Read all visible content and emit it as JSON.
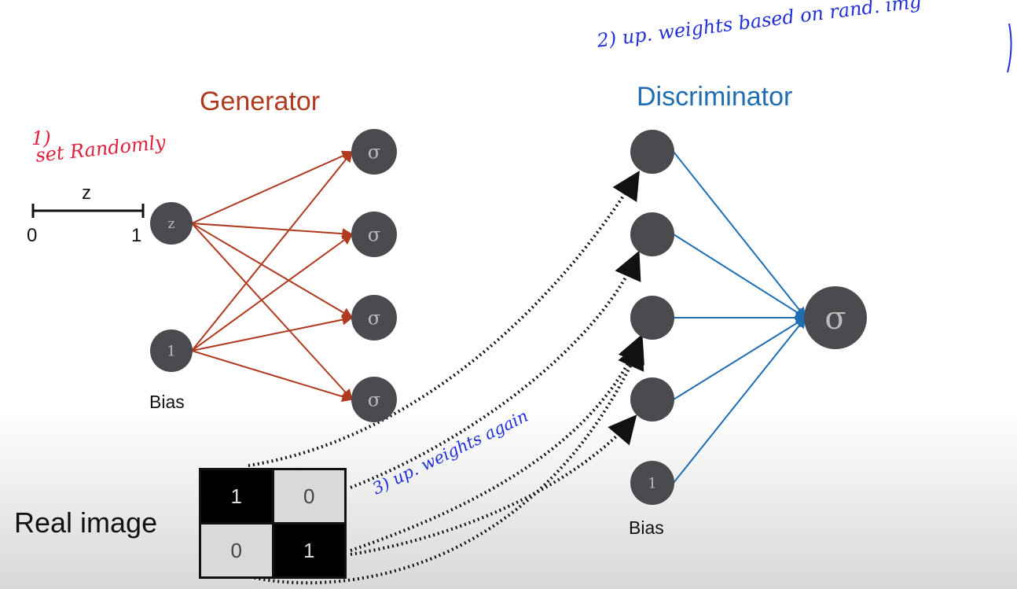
{
  "generator": {
    "title": "Generator",
    "input_node": "z",
    "bias_node": "1",
    "bias_label": "Bias",
    "output_symbol": "σ",
    "color": "#b03a1f"
  },
  "z_axis": {
    "label": "z",
    "min": "0",
    "max": "1"
  },
  "discriminator": {
    "title": "Discriminator",
    "bias_node": "1",
    "bias_label": "Bias",
    "output_symbol": "σ",
    "color": "#1f6eb3"
  },
  "real_image": {
    "label": "Real image",
    "pixels": [
      [
        "1",
        "0"
      ],
      [
        "0",
        "1"
      ]
    ]
  },
  "annotations": {
    "step1_number": "1)",
    "step1_text": "set Randomly",
    "step2": "2) up. weights based on rand. img",
    "step3": "3) up. weights again"
  },
  "colors": {
    "node": "#4a4a4f",
    "edge_generator": "#b03a1f",
    "edge_discriminator": "#1f6eb3",
    "dotted": "#111111"
  }
}
